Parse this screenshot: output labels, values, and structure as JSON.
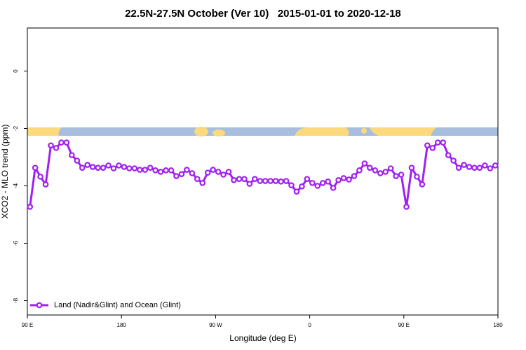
{
  "chart_data": {
    "type": "line",
    "title": "22.5N-27.5N October (Ver 10)   2015-01-01 to 2020-12-18",
    "x_label": "Longitude (deg E)",
    "y_label": "XCO2 - MLO trend (ppm)",
    "xlim": [
      90,
      540
    ],
    "xticks": [
      {
        "value": 90,
        "label": "90 E"
      },
      180,
      {
        "value": 270,
        "label": "90 W"
      },
      {
        "value": 360,
        "label": "0"
      },
      {
        "value": 450,
        "label": "90 E"
      },
      {
        "value": 540,
        "label": "180"
      }
    ],
    "ylim": [
      -8.5,
      1.5
    ],
    "yticks": [
      -8,
      -6,
      -4,
      -2,
      0
    ],
    "legend": "bottom-left",
    "x": [
      92.5,
      97.5,
      102.5,
      107.5,
      112.5,
      117.5,
      122.5,
      127.5,
      132.5,
      137.5,
      142.5,
      147.5,
      152.5,
      157.5,
      162.5,
      167.5,
      172.5,
      177.5,
      182.5,
      187.5,
      192.5,
      197.5,
      202.5,
      207.5,
      212.5,
      217.5,
      222.5,
      227.5,
      232.5,
      237.5,
      242.5,
      247.5,
      252.5,
      257.5,
      262.5,
      267.5,
      272.5,
      277.5,
      282.5,
      287.5,
      292.5,
      297.5,
      302.5,
      307.5,
      312.5,
      317.5,
      322.5,
      327.5,
      332.5,
      337.5,
      342.5,
      347.5,
      352.5,
      357.5,
      362.5,
      367.5,
      372.5,
      377.5,
      382.5,
      387.5,
      392.5,
      397.5,
      402.5,
      407.5,
      412.5,
      417.5,
      422.5,
      427.5,
      432.5,
      437.5,
      442.5,
      447.5,
      452.5,
      457.5,
      462.5,
      467.5,
      472.5,
      477.5,
      482.5,
      487.5,
      492.5,
      497.5,
      502.5,
      507.5,
      512.5,
      517.5,
      522.5,
      527.5,
      532.5,
      537.5
    ],
    "series": [
      {
        "name": "Land (Nadir&Glint) and Ocean (Glint)",
        "color": "#a020f0",
        "values": [
          -4.73,
          -3.37,
          -3.68,
          -3.95,
          -2.59,
          -2.68,
          -2.49,
          -2.49,
          -2.93,
          -3.12,
          -3.37,
          -3.27,
          -3.34,
          -3.37,
          -3.37,
          -3.29,
          -3.39,
          -3.29,
          -3.34,
          -3.39,
          -3.39,
          -3.44,
          -3.44,
          -3.37,
          -3.46,
          -3.51,
          -3.46,
          -3.46,
          -3.66,
          -3.59,
          -3.44,
          -3.56,
          -3.76,
          -3.9,
          -3.54,
          -3.44,
          -3.51,
          -3.61,
          -3.51,
          -3.8,
          -3.76,
          -3.76,
          -3.93,
          -3.76,
          -3.83,
          -3.83,
          -3.83,
          -3.83,
          -3.85,
          -3.83,
          -3.98,
          -4.2,
          -4.02,
          -3.76,
          -3.9,
          -4.0,
          -3.9,
          -3.85,
          -4.07,
          -3.8,
          -3.73,
          -3.78,
          -3.66,
          -3.46,
          -3.22,
          -3.37,
          -3.46,
          -3.56,
          -3.51,
          -3.39,
          -3.66,
          -3.61,
          -4.73,
          -3.37,
          -3.68,
          -3.95,
          -2.59,
          -2.68,
          -2.49,
          -2.49,
          -2.93,
          -3.12,
          -3.37,
          -3.27,
          -3.34,
          -3.37,
          -3.37,
          -3.29,
          -3.39,
          -3.29
        ]
      }
    ]
  }
}
